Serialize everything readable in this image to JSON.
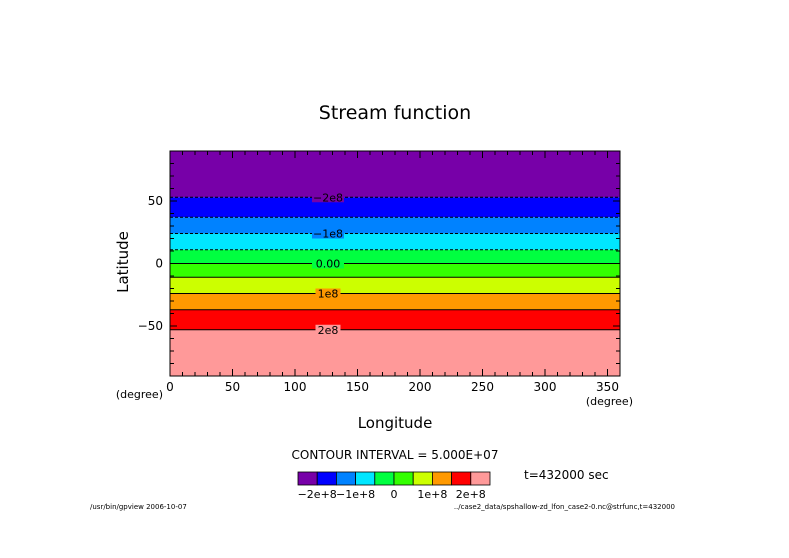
{
  "chart_data": {
    "type": "heatmap",
    "title": "Stream function",
    "xlabel": "Longitude",
    "ylabel": "Latitude",
    "x_unit": "(degree)",
    "y_unit": "(degree)",
    "xlim": [
      0,
      360
    ],
    "ylim": [
      -90,
      90
    ],
    "x_ticks": [
      "0",
      "50",
      "100",
      "150",
      "200",
      "250",
      "300",
      "350"
    ],
    "y_ticks": [
      "50",
      "0",
      "−50"
    ],
    "contour_labels": [
      {
        "text": "−2e8",
        "lat": 53,
        "dashed": true
      },
      {
        "text": "−1e8",
        "lat": 24,
        "dashed": true
      },
      {
        "text": "0.00",
        "lat": 0,
        "dashed": false
      },
      {
        "text": "1e8",
        "lat": -24,
        "dashed": false
      },
      {
        "text": "2e8",
        "lat": -53,
        "dashed": false
      }
    ],
    "contour_levels_unlabeled": [
      {
        "lat": 37,
        "dashed": true
      },
      {
        "lat": 11,
        "dashed": true
      },
      {
        "lat": -11,
        "dashed": false
      },
      {
        "lat": -37,
        "dashed": false
      }
    ],
    "bands": [
      {
        "lat_top": 90,
        "lat_bottom": 53,
        "color": "#7700a8"
      },
      {
        "lat_top": 53,
        "lat_bottom": 37,
        "color": "#0000ff"
      },
      {
        "lat_top": 37,
        "lat_bottom": 24,
        "color": "#0082ff"
      },
      {
        "lat_top": 24,
        "lat_bottom": 11,
        "color": "#00e6ff"
      },
      {
        "lat_top": 11,
        "lat_bottom": 0,
        "color": "#00ff40"
      },
      {
        "lat_top": 0,
        "lat_bottom": -11,
        "color": "#33ff00"
      },
      {
        "lat_top": -11,
        "lat_bottom": -24,
        "color": "#ccff00"
      },
      {
        "lat_top": -24,
        "lat_bottom": -37,
        "color": "#ff9900"
      },
      {
        "lat_top": -37,
        "lat_bottom": -53,
        "color": "#ff0000"
      },
      {
        "lat_top": -53,
        "lat_bottom": -90,
        "color": "#ff9999"
      }
    ],
    "contour_interval": "CONTOUR INTERVAL = 5.000E+07",
    "time_label": "t=432000 sec",
    "colorbar": {
      "colors": [
        "#7700a8",
        "#0000ff",
        "#0082ff",
        "#00e6ff",
        "#00ff40",
        "#33ff00",
        "#ccff00",
        "#ff9900",
        "#ff0000",
        "#ff9999"
      ],
      "labels": [
        "−2e+8",
        "−1e+8",
        "0",
        "1e+8",
        "2e+8"
      ]
    },
    "footer_left": "/usr/bin/gpview  2006-10-07",
    "footer_right": "../case2_data/spshallow-zd_lfon_case2-0.nc@strfunc,t=432000"
  }
}
